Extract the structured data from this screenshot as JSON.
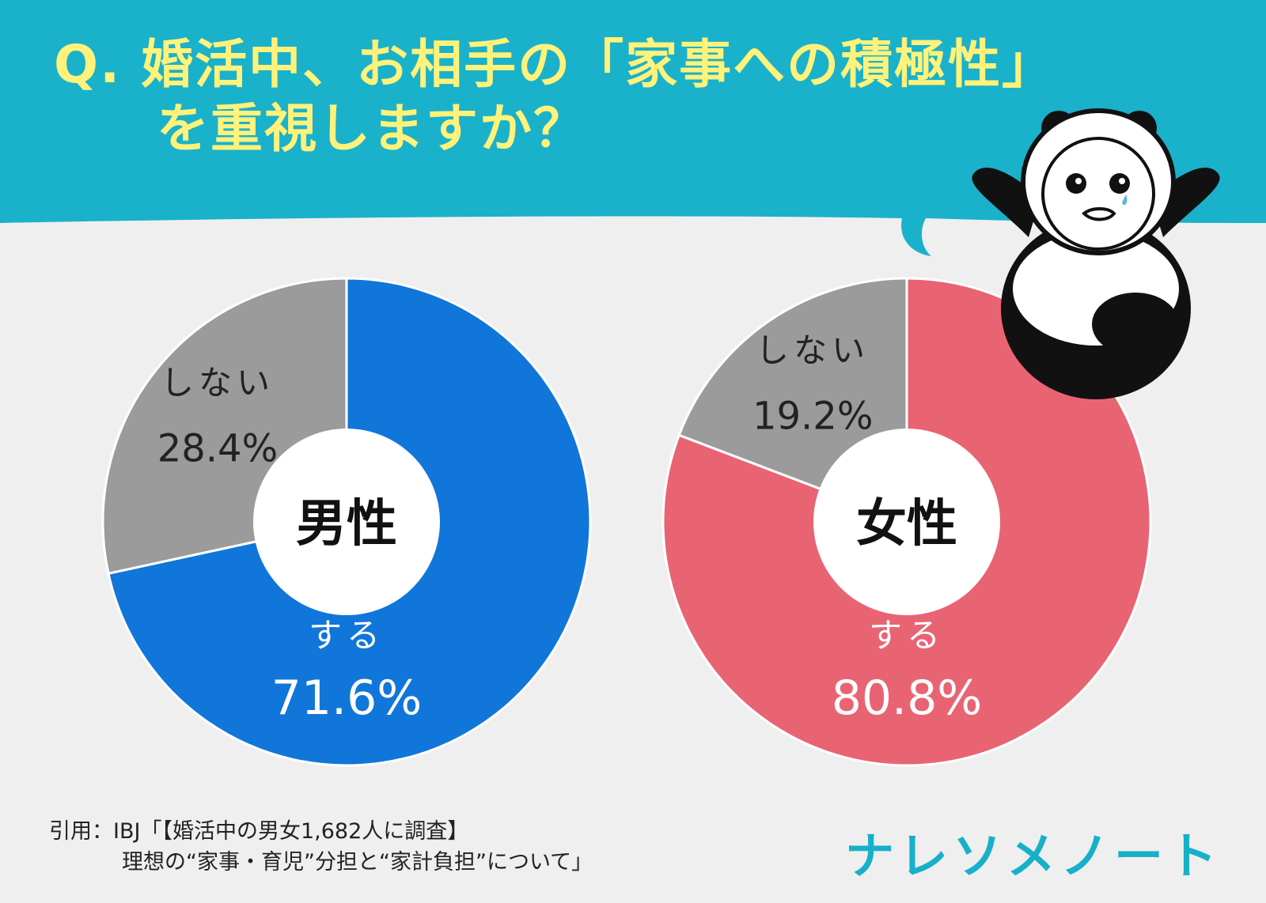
{
  "header": {
    "question_line1": "Q. 婚活中、お相手の「家事への積極性」",
    "question_line2": "を重視しますか？",
    "banner_color": "#1ab1cb",
    "text_color": "#fff27a"
  },
  "chart_data": [
    {
      "type": "pie",
      "center_label": "男性",
      "slices": [
        {
          "label": "する",
          "value": 71.6,
          "display": "71.6%",
          "color": "#1176d9"
        },
        {
          "label": "しない",
          "value": 28.4,
          "display": "28.4%",
          "color": "#9b9b9b"
        }
      ]
    },
    {
      "type": "pie",
      "center_label": "女性",
      "slices": [
        {
          "label": "する",
          "value": 80.8,
          "display": "80.8%",
          "color": "#e96473"
        },
        {
          "label": "しない",
          "value": 19.2,
          "display": "19.2%",
          "color": "#9b9b9b"
        }
      ]
    }
  ],
  "footer": {
    "citation_line1": "引用：IBJ「【婚活中の男女1,682人に調査】",
    "citation_line2": "理想の“家事・育児”分担と“家計負担”について」",
    "brand": "ナレソメノート",
    "brand_color": "#17b0c9"
  },
  "mascot": {
    "icon": "panda-icon"
  }
}
